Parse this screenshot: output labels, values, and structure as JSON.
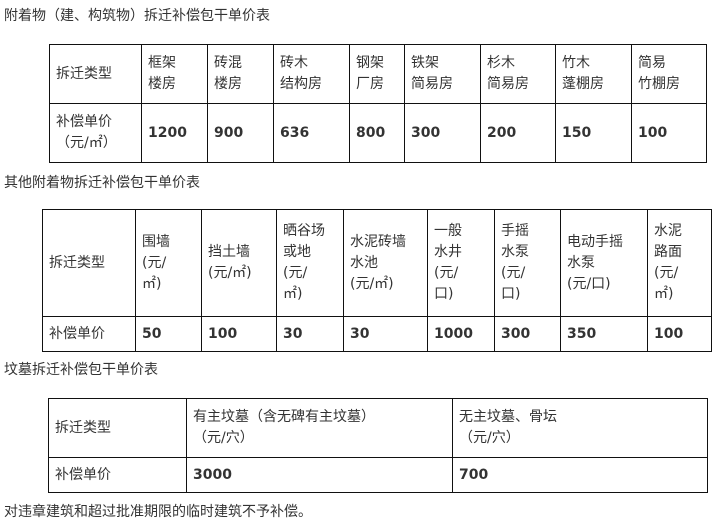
{
  "table1": {
    "title": "附着物（建、构筑物）拆迁补偿包干单价表",
    "row_label_type": "拆迁类型",
    "row_label_price": "补偿单价",
    "row_label_unit": "（元/㎡）",
    "types": [
      [
        "框架",
        "楼房"
      ],
      [
        "砖混",
        "楼房"
      ],
      [
        "砖木",
        "结构房"
      ],
      [
        "钢架",
        "厂房"
      ],
      [
        "铁架",
        "简易房"
      ],
      [
        "杉木",
        "简易房"
      ],
      [
        "竹木",
        "蓬棚房"
      ],
      [
        "简易",
        "竹棚房"
      ]
    ],
    "prices": [
      "1200",
      "900",
      "636",
      "800",
      "300",
      "200",
      "150",
      "100"
    ]
  },
  "table2": {
    "title": "其他附着物拆迁补偿包干单价表",
    "row_label_type": "拆迁类型",
    "row_label_price": "补偿单价",
    "types": [
      [
        "围墙",
        "(元/",
        "㎡)"
      ],
      [
        "挡土墙",
        "(元/㎡)"
      ],
      [
        "晒谷场",
        "或地",
        "(元/",
        "㎡)"
      ],
      [
        "水泥砖墙",
        "水池",
        "(元/㎡)"
      ],
      [
        "一般",
        "水井",
        "(元/",
        "口)"
      ],
      [
        "手摇",
        "水泵",
        "(元/",
        "口)"
      ],
      [
        "电动手摇",
        "水泵",
        "(元/口)"
      ],
      [
        "水泥",
        "路面",
        "(元/",
        "㎡)"
      ]
    ],
    "prices": [
      "50",
      "100",
      "30",
      "30",
      "1000",
      "300",
      "350",
      "100"
    ]
  },
  "table3": {
    "title": "坟墓拆迁补偿包干单价表",
    "row_label_type": "拆迁类型",
    "row_label_price": "补偿单价",
    "types": [
      [
        "有主坟墓（含无碑有主坟墓）",
        "（元/穴）"
      ],
      [
        "无主坟墓、骨坛",
        "（元/穴）"
      ]
    ],
    "prices": [
      "3000",
      "700"
    ]
  },
  "footer": "对违章建筑和超过批准期限的临时建筑不予补偿。"
}
